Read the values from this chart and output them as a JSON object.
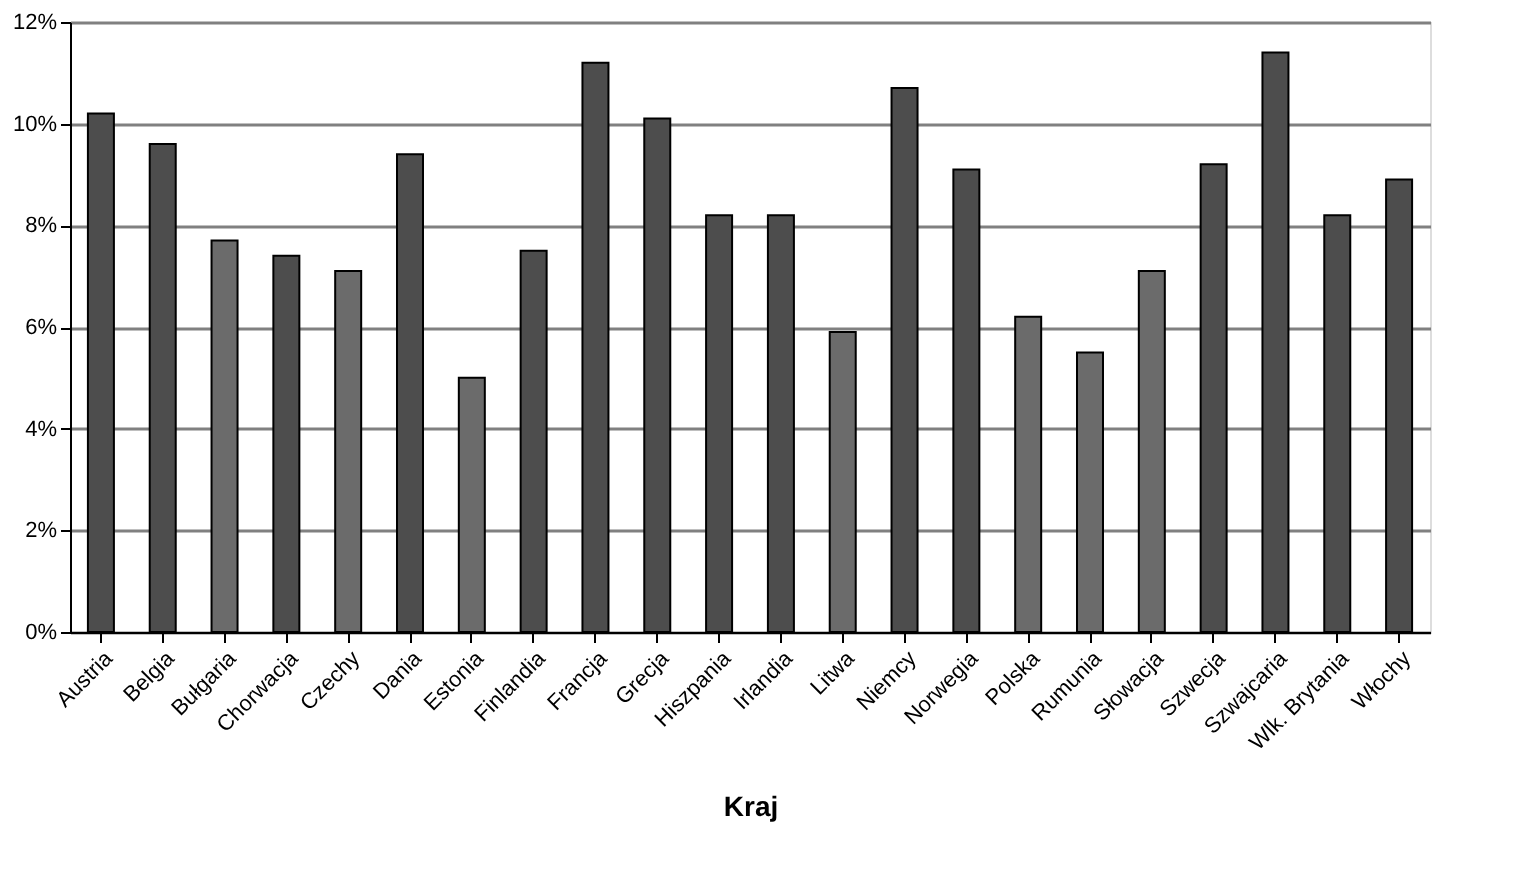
{
  "chart_data": {
    "type": "bar",
    "xlabel": "Kraj",
    "categories": [
      "Austria",
      "Belgia",
      "Bułgaria",
      "Chorwacja",
      "Czechy",
      "Dania",
      "Estonia",
      "Finlandia",
      "Francja",
      "Grecja",
      "Hiszpania",
      "Irlandia",
      "Litwa",
      "Niemcy",
      "Norwegia",
      "Polska",
      "Rumunia",
      "Słowacja",
      "Szwecja",
      "Szwajcaria",
      "Wlk. Brytania",
      "Włochy"
    ],
    "values": [
      10.2,
      9.6,
      7.7,
      7.4,
      7.1,
      9.4,
      5.0,
      7.5,
      11.2,
      10.1,
      8.2,
      8.2,
      5.9,
      10.7,
      9.1,
      6.2,
      5.5,
      7.1,
      9.2,
      11.4,
      8.2,
      8.9
    ],
    "colors": [
      "#4d4d4d",
      "#4d4d4d",
      "#6b6b6b",
      "#4d4d4d",
      "#6b6b6b",
      "#4d4d4d",
      "#6b6b6b",
      "#4d4d4d",
      "#4d4d4d",
      "#4d4d4d",
      "#4d4d4d",
      "#4d4d4d",
      "#6b6b6b",
      "#4d4d4d",
      "#4d4d4d",
      "#6b6b6b",
      "#6b6b6b",
      "#6b6b6b",
      "#4d4d4d",
      "#4d4d4d",
      "#4d4d4d",
      "#4d4d4d"
    ],
    "ylim": [
      0,
      12
    ],
    "yticks": [
      {
        "value": 0,
        "label": "0%"
      },
      {
        "value": 2,
        "label": "2%"
      },
      {
        "value": 4,
        "label": "4%"
      },
      {
        "value": 6,
        "label": "6%"
      },
      {
        "value": 8,
        "label": "8%"
      },
      {
        "value": 10,
        "label": "10%"
      },
      {
        "value": 12,
        "label": "12%"
      }
    ],
    "grid": "y"
  }
}
